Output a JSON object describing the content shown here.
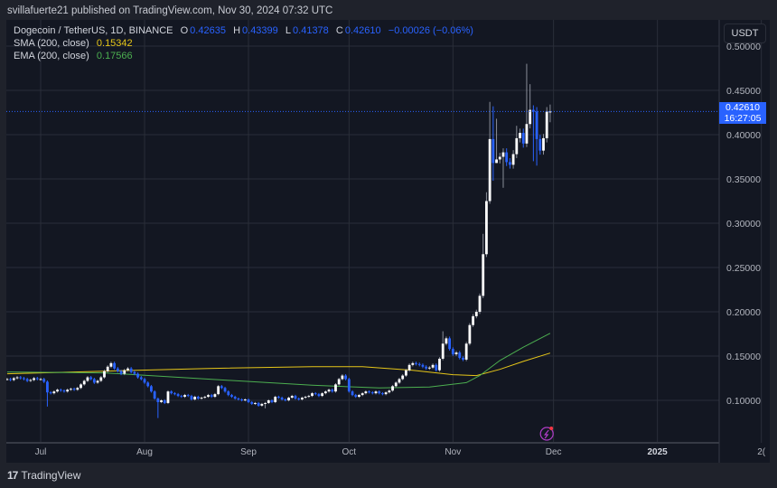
{
  "published": "svillafuerte21 published on TradingView.com, Nov 30, 2024 07:32 UTC",
  "symbol": {
    "name": "Dogecoin / TetherUS, 1D, BINANCE",
    "o_label": "O",
    "open": "0.42635",
    "h_label": "H",
    "high": "0.43399",
    "l_label": "L",
    "low": "0.41378",
    "c_label": "C",
    "close": "0.42610",
    "change": "−0.00026 (−0.06%)"
  },
  "indicators": [
    {
      "label": "SMA (200, close)",
      "value": "0.15342",
      "color": "#e6c619"
    },
    {
      "label": "EMA (200, close)",
      "value": "0.17566",
      "color": "#4caf50"
    }
  ],
  "price_axis": {
    "unit": "USDT",
    "ticks": [
      "0.10000",
      "0.15000",
      "0.20000",
      "0.25000",
      "0.30000",
      "0.35000",
      "0.40000",
      "0.45000",
      "0.50000"
    ],
    "current_price": "0.42610",
    "countdown": "16:27:05"
  },
  "time_axis": {
    "ticks": [
      {
        "label": "Jul",
        "date": "2024-07-01",
        "bold": false
      },
      {
        "label": "Aug",
        "date": "2024-08-01",
        "bold": false
      },
      {
        "label": "Sep",
        "date": "2024-09-01",
        "bold": false
      },
      {
        "label": "Oct",
        "date": "2024-10-01",
        "bold": false
      },
      {
        "label": "Nov",
        "date": "2024-11-01",
        "bold": false
      },
      {
        "label": "Dec",
        "date": "2024-12-01",
        "bold": false
      },
      {
        "label": "2025",
        "date": "2025-01-01",
        "bold": true
      },
      {
        "label": "2(",
        "date": "2025-02-01",
        "bold": false
      }
    ]
  },
  "footer": {
    "logo_mark": "17",
    "brand": "TradingView"
  },
  "colors": {
    "up": "#ffffff",
    "down": "#2962ff",
    "background": "#131722",
    "grid": "#2a2e39",
    "sma": "#e6c619",
    "ema": "#4caf50",
    "flash": "#b03cc8"
  },
  "chart_data": {
    "type": "candlestick",
    "interval": "1D",
    "start_date": "2024-06-21",
    "end_date": "2024-11-30",
    "close": [
      0.124,
      0.123,
      0.125,
      0.126,
      0.125,
      0.124,
      0.122,
      0.123,
      0.125,
      0.124,
      0.124,
      0.121,
      0.109,
      0.108,
      0.11,
      0.112,
      0.111,
      0.11,
      0.112,
      0.113,
      0.112,
      0.114,
      0.118,
      0.122,
      0.126,
      0.124,
      0.12,
      0.122,
      0.126,
      0.133,
      0.138,
      0.142,
      0.136,
      0.133,
      0.13,
      0.134,
      0.136,
      0.132,
      0.13,
      0.126,
      0.124,
      0.12,
      0.116,
      0.11,
      0.102,
      0.098,
      0.1,
      0.097,
      0.11,
      0.108,
      0.107,
      0.105,
      0.104,
      0.106,
      0.105,
      0.101,
      0.104,
      0.102,
      0.103,
      0.104,
      0.106,
      0.104,
      0.107,
      0.116,
      0.114,
      0.11,
      0.106,
      0.104,
      0.102,
      0.101,
      0.1,
      0.101,
      0.098,
      0.096,
      0.097,
      0.094,
      0.096,
      0.097,
      0.1,
      0.098,
      0.104,
      0.103,
      0.101,
      0.1,
      0.103,
      0.105,
      0.102,
      0.101,
      0.103,
      0.104,
      0.105,
      0.108,
      0.107,
      0.105,
      0.108,
      0.11,
      0.112,
      0.11,
      0.118,
      0.124,
      0.128,
      0.124,
      0.11,
      0.106,
      0.104,
      0.106,
      0.108,
      0.11,
      0.109,
      0.108,
      0.11,
      0.108,
      0.107,
      0.109,
      0.111,
      0.116,
      0.12,
      0.124,
      0.128,
      0.134,
      0.14,
      0.142,
      0.141,
      0.14,
      0.138,
      0.136,
      0.137,
      0.14,
      0.134,
      0.147,
      0.164,
      0.17,
      0.158,
      0.152,
      0.154,
      0.148,
      0.146,
      0.164,
      0.185,
      0.195,
      0.2,
      0.218,
      0.265,
      0.325,
      0.395,
      0.368,
      0.372,
      0.375,
      0.38,
      0.369,
      0.366,
      0.378,
      0.396,
      0.402,
      0.39,
      0.412,
      0.428,
      0.426,
      0.395,
      0.382,
      0.396,
      0.426,
      0.4261
    ],
    "wick_extremes": [
      {
        "date": "2024-07-03",
        "low": 0.093
      },
      {
        "date": "2024-08-05",
        "low": 0.08
      },
      {
        "date": "2024-09-06",
        "low": 0.091
      },
      {
        "date": "2024-10-29",
        "high": 0.178
      },
      {
        "date": "2024-11-10",
        "high": 0.288
      },
      {
        "date": "2024-11-11",
        "high": 0.335
      },
      {
        "date": "2024-11-12",
        "high": 0.437,
        "low": 0.322
      },
      {
        "date": "2024-11-13",
        "high": 0.432,
        "low": 0.348
      },
      {
        "date": "2024-11-14",
        "high": 0.418,
        "low": 0.368
      },
      {
        "date": "2024-11-16",
        "low": 0.34
      },
      {
        "date": "2024-11-20",
        "high": 0.41
      },
      {
        "date": "2024-11-23",
        "high": 0.48,
        "low": 0.386
      },
      {
        "date": "2024-11-24",
        "high": 0.457
      },
      {
        "date": "2024-11-25",
        "low": 0.37
      },
      {
        "date": "2024-11-26",
        "low": 0.365
      },
      {
        "date": "2024-11-30",
        "high": 0.434,
        "low": 0.414
      }
    ],
    "sma_200": [
      [
        "2024-06-21",
        0.13
      ],
      [
        "2024-07-20",
        0.133
      ],
      [
        "2024-08-20",
        0.136
      ],
      [
        "2024-09-20",
        0.138
      ],
      [
        "2024-10-05",
        0.138
      ],
      [
        "2024-10-20",
        0.134
      ],
      [
        "2024-11-01",
        0.129
      ],
      [
        "2024-11-08",
        0.128
      ],
      [
        "2024-11-15",
        0.135
      ],
      [
        "2024-11-22",
        0.144
      ],
      [
        "2024-11-30",
        0.1534
      ]
    ],
    "ema_200": [
      [
        "2024-06-21",
        0.132
      ],
      [
        "2024-07-20",
        0.131
      ],
      [
        "2024-08-20",
        0.124
      ],
      [
        "2024-09-20",
        0.117
      ],
      [
        "2024-10-10",
        0.114
      ],
      [
        "2024-10-25",
        0.115
      ],
      [
        "2024-11-05",
        0.12
      ],
      [
        "2024-11-09",
        0.128
      ],
      [
        "2024-11-15",
        0.145
      ],
      [
        "2024-11-22",
        0.16
      ],
      [
        "2024-11-30",
        0.1757
      ]
    ],
    "ylim": [
      0.05,
      0.51
    ]
  }
}
